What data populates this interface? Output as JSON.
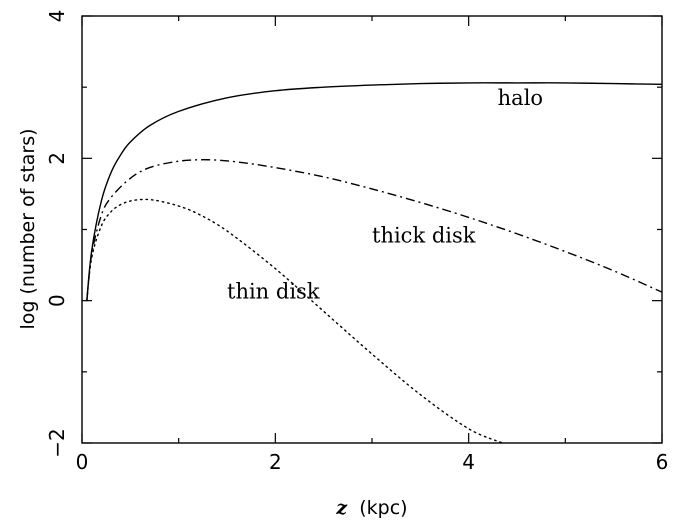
{
  "chart_data": {
    "type": "line",
    "xlabel": {
      "var": "z",
      "unit": "(kpc)"
    },
    "ylabel": "log (number of stars)",
    "xlim": [
      0,
      6
    ],
    "ylim": [
      -2,
      4
    ],
    "x_ticks": [
      "0",
      "2",
      "4",
      "6"
    ],
    "y_ticks": [
      "−2",
      "0",
      "2",
      "4"
    ],
    "grid": false,
    "series": [
      {
        "name": "halo",
        "style": "solid",
        "x": [
          0.05,
          0.1,
          0.2,
          0.3,
          0.4,
          0.5,
          0.7,
          1.0,
          1.5,
          2.0,
          2.5,
          3.0,
          3.5,
          4.0,
          4.5,
          5.0,
          5.5,
          6.0
        ],
        "values": [
          0.0,
          0.7,
          1.4,
          1.8,
          2.05,
          2.23,
          2.46,
          2.66,
          2.85,
          2.95,
          3.0,
          3.03,
          3.05,
          3.06,
          3.06,
          3.06,
          3.05,
          3.04
        ]
      },
      {
        "name": "thick disk",
        "style": "dashdot",
        "x": [
          0.05,
          0.1,
          0.2,
          0.3,
          0.5,
          0.7,
          1.0,
          1.3,
          1.6,
          2.0,
          2.5,
          3.0,
          3.5,
          4.0,
          4.5,
          5.0,
          5.5,
          6.0
        ],
        "values": [
          0.0,
          0.65,
          1.2,
          1.45,
          1.72,
          1.87,
          1.96,
          1.98,
          1.95,
          1.87,
          1.74,
          1.57,
          1.38,
          1.17,
          0.94,
          0.69,
          0.42,
          0.12
        ]
      },
      {
        "name": "thin disk",
        "style": "dotted",
        "x": [
          0.05,
          0.1,
          0.2,
          0.3,
          0.4,
          0.5,
          0.6,
          0.7,
          0.8,
          1.0,
          1.2,
          1.5,
          2.0,
          2.5,
          3.0,
          3.5,
          4.0,
          4.35
        ],
        "values": [
          0.0,
          0.6,
          1.05,
          1.25,
          1.35,
          1.4,
          1.42,
          1.42,
          1.4,
          1.33,
          1.22,
          0.98,
          0.45,
          -0.15,
          -0.75,
          -1.32,
          -1.8,
          -2.0
        ]
      }
    ],
    "annotations": [
      {
        "text": "halo",
        "x": 4.3,
        "y": 2.75
      },
      {
        "text": "thick disk",
        "x": 3.0,
        "y": 0.82
      },
      {
        "text": "thin disk",
        "x": 1.5,
        "y": 0.03
      }
    ]
  }
}
